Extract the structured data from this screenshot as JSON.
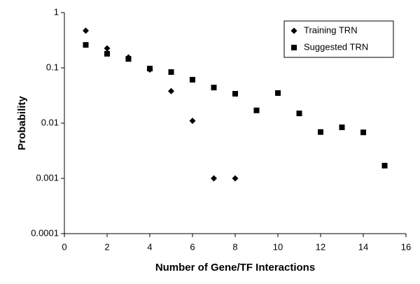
{
  "chart_data": {
    "type": "scatter",
    "xlabel": "Number of Gene/TF Interactions",
    "ylabel": "Probability",
    "xlim": [
      0,
      16
    ],
    "xticks": [
      0,
      2,
      4,
      6,
      8,
      10,
      12,
      14,
      16
    ],
    "ylim": [
      0.0001,
      1
    ],
    "yticks": [
      1,
      0.1,
      0.01,
      0.001,
      0.0001
    ],
    "ylog": true,
    "grid": false,
    "legend": "upper right",
    "series": [
      {
        "name": "Training TRN",
        "color": "#000000",
        "marker": "diamond",
        "x": [
          1,
          2,
          3,
          4,
          5,
          6,
          7,
          8
        ],
        "values": [
          0.47,
          0.225,
          0.155,
          0.093,
          0.038,
          0.011,
          0.001,
          0.001
        ]
      },
      {
        "name": "Suggested TRN",
        "color": "#000000",
        "marker": "square",
        "x": [
          1,
          2,
          3,
          4,
          5,
          6,
          7,
          8,
          9,
          10,
          11,
          12,
          13,
          14,
          15
        ],
        "values": [
          0.26,
          0.18,
          0.145,
          0.097,
          0.084,
          0.061,
          0.044,
          0.034,
          0.017,
          0.035,
          0.015,
          0.0069,
          0.0084,
          0.0068,
          0.0017
        ]
      }
    ]
  }
}
